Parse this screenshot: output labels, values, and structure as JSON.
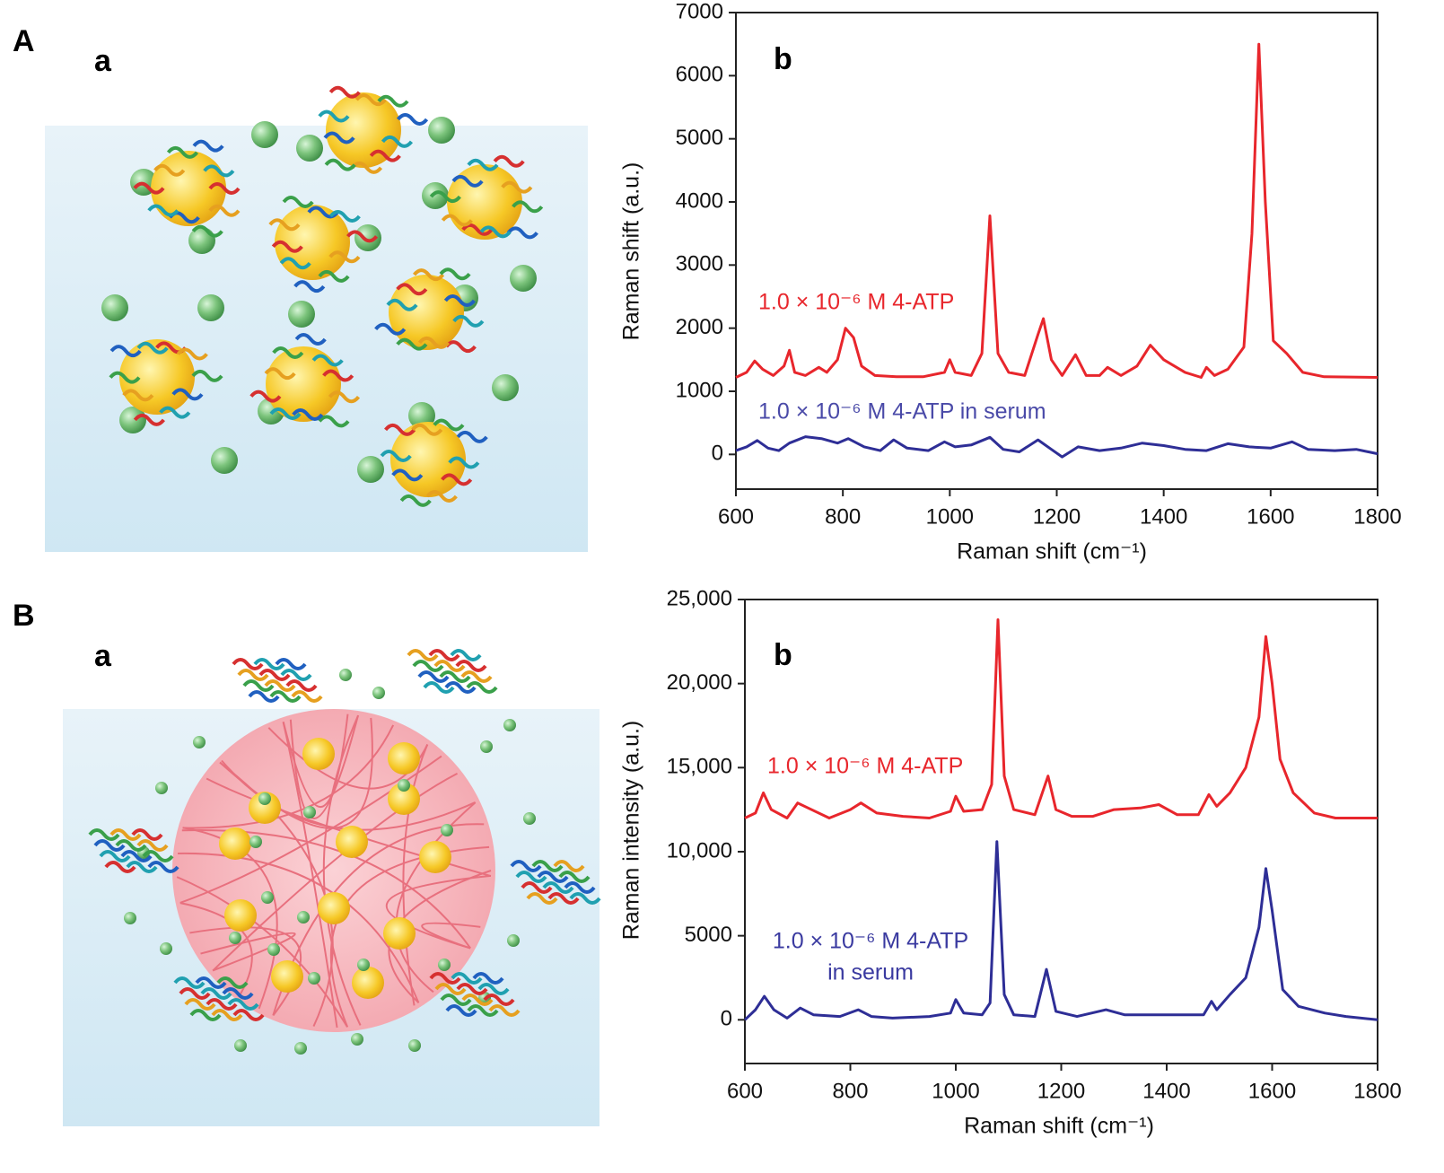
{
  "panels": [
    {
      "label": "A",
      "sublabel": "a"
    },
    {
      "label": "B",
      "sublabel": "a"
    }
  ],
  "chart_data": [
    {
      "type": "line",
      "panel_label": "b",
      "x_label": "Raman shift (cm⁻¹)",
      "y_label": "Raman shift (a.u.)",
      "xlim": [
        600,
        1800
      ],
      "xticks": [
        600,
        800,
        1000,
        1200,
        1400,
        1600,
        1800
      ],
      "ylim": [
        -550,
        7000
      ],
      "yticks": [
        0,
        1000,
        2000,
        3000,
        4000,
        5000,
        6000,
        7000
      ],
      "annotations": [
        {
          "lines": [
            "1.0 × 10⁻⁶ M 4-ATP"
          ],
          "color": "#e8262c"
        },
        {
          "lines": [
            "1.0 × 10⁻⁶ M 4-ATP in serum"
          ],
          "color": "#4a4aa8"
        }
      ],
      "series": [
        {
          "color": "#e8262c",
          "x": [
            600,
            620,
            635,
            650,
            670,
            690,
            700,
            710,
            730,
            755,
            770,
            790,
            805,
            820,
            835,
            860,
            900,
            950,
            990,
            1000,
            1010,
            1040,
            1060,
            1075,
            1090,
            1110,
            1140,
            1165,
            1175,
            1190,
            1210,
            1235,
            1255,
            1280,
            1295,
            1320,
            1350,
            1375,
            1400,
            1440,
            1470,
            1480,
            1495,
            1520,
            1550,
            1565,
            1578,
            1590,
            1605,
            1630,
            1660,
            1700,
            1800
          ],
          "values": [
            1220,
            1300,
            1480,
            1350,
            1250,
            1400,
            1650,
            1300,
            1250,
            1380,
            1300,
            1500,
            2000,
            1850,
            1400,
            1250,
            1230,
            1230,
            1300,
            1500,
            1300,
            1250,
            1600,
            3780,
            1600,
            1300,
            1250,
            1900,
            2150,
            1500,
            1250,
            1580,
            1250,
            1250,
            1380,
            1250,
            1400,
            1730,
            1500,
            1300,
            1220,
            1380,
            1250,
            1350,
            1700,
            3500,
            6500,
            4000,
            1800,
            1600,
            1300,
            1230,
            1220
          ]
        },
        {
          "color": "#2e2e96",
          "x": [
            600,
            620,
            640,
            660,
            680,
            700,
            730,
            760,
            790,
            810,
            840,
            870,
            895,
            920,
            960,
            990,
            1010,
            1040,
            1075,
            1100,
            1130,
            1165,
            1190,
            1210,
            1240,
            1280,
            1320,
            1360,
            1400,
            1440,
            1480,
            1520,
            1560,
            1600,
            1640,
            1670,
            1720,
            1760,
            1800
          ],
          "values": [
            60,
            120,
            220,
            100,
            60,
            180,
            280,
            250,
            180,
            250,
            120,
            60,
            230,
            100,
            60,
            200,
            120,
            150,
            270,
            80,
            40,
            230,
            80,
            -40,
            120,
            60,
            100,
            180,
            140,
            80,
            60,
            170,
            120,
            100,
            200,
            80,
            60,
            80,
            10
          ]
        }
      ]
    },
    {
      "type": "line",
      "panel_label": "b",
      "x_label": "Raman shift (cm⁻¹)",
      "y_label": "Raman intensity (a.u.)",
      "xlim": [
        600,
        1800
      ],
      "xticks": [
        600,
        800,
        1000,
        1200,
        1400,
        1600,
        1800
      ],
      "ylim": [
        -2600,
        25000
      ],
      "yticks": [
        0,
        5000,
        {
          "value": 10000,
          "label": "10,000"
        },
        {
          "value": 15000,
          "label": "15,000"
        },
        {
          "value": 20000,
          "label": "20,000"
        },
        {
          "value": 25000,
          "label": "25,000"
        }
      ],
      "annotations": [
        {
          "lines": [
            "1.0 × 10⁻⁶ M 4-ATP"
          ],
          "color": "#e8262c"
        },
        {
          "lines": [
            "1.0 × 10⁻⁶ M 4-ATP",
            "in serum"
          ],
          "color": "#3a3aa0"
        }
      ],
      "series": [
        {
          "color": "#e8262c",
          "x": [
            600,
            620,
            635,
            650,
            680,
            700,
            720,
            760,
            800,
            820,
            850,
            900,
            950,
            990,
            1000,
            1015,
            1050,
            1068,
            1080,
            1092,
            1110,
            1150,
            1175,
            1190,
            1220,
            1260,
            1300,
            1350,
            1385,
            1420,
            1460,
            1480,
            1495,
            1520,
            1550,
            1575,
            1588,
            1600,
            1615,
            1640,
            1680,
            1720,
            1800
          ],
          "values": [
            12000,
            12300,
            13500,
            12500,
            12000,
            12900,
            12600,
            12000,
            12500,
            12900,
            12300,
            12100,
            12000,
            12400,
            13300,
            12400,
            12500,
            14000,
            23800,
            14500,
            12500,
            12200,
            14500,
            12500,
            12100,
            12100,
            12500,
            12600,
            12800,
            12200,
            12200,
            13400,
            12700,
            13500,
            15000,
            18000,
            22800,
            20000,
            15500,
            13500,
            12300,
            12000,
            12000
          ]
        },
        {
          "color": "#2e2e96",
          "x": [
            600,
            620,
            637,
            655,
            680,
            705,
            730,
            780,
            815,
            840,
            880,
            950,
            990,
            1000,
            1015,
            1050,
            1065,
            1078,
            1092,
            1110,
            1150,
            1172,
            1190,
            1230,
            1285,
            1320,
            1400,
            1470,
            1485,
            1495,
            1520,
            1550,
            1575,
            1588,
            1600,
            1620,
            1650,
            1700,
            1740,
            1800
          ],
          "values": [
            0,
            600,
            1400,
            600,
            100,
            700,
            300,
            200,
            600,
            200,
            100,
            200,
            400,
            1200,
            400,
            300,
            1000,
            10600,
            1500,
            300,
            200,
            3000,
            500,
            200,
            600,
            300,
            300,
            300,
            1100,
            600,
            1500,
            2500,
            5500,
            9000,
            6500,
            1800,
            800,
            400,
            200,
            0
          ]
        }
      ]
    }
  ]
}
